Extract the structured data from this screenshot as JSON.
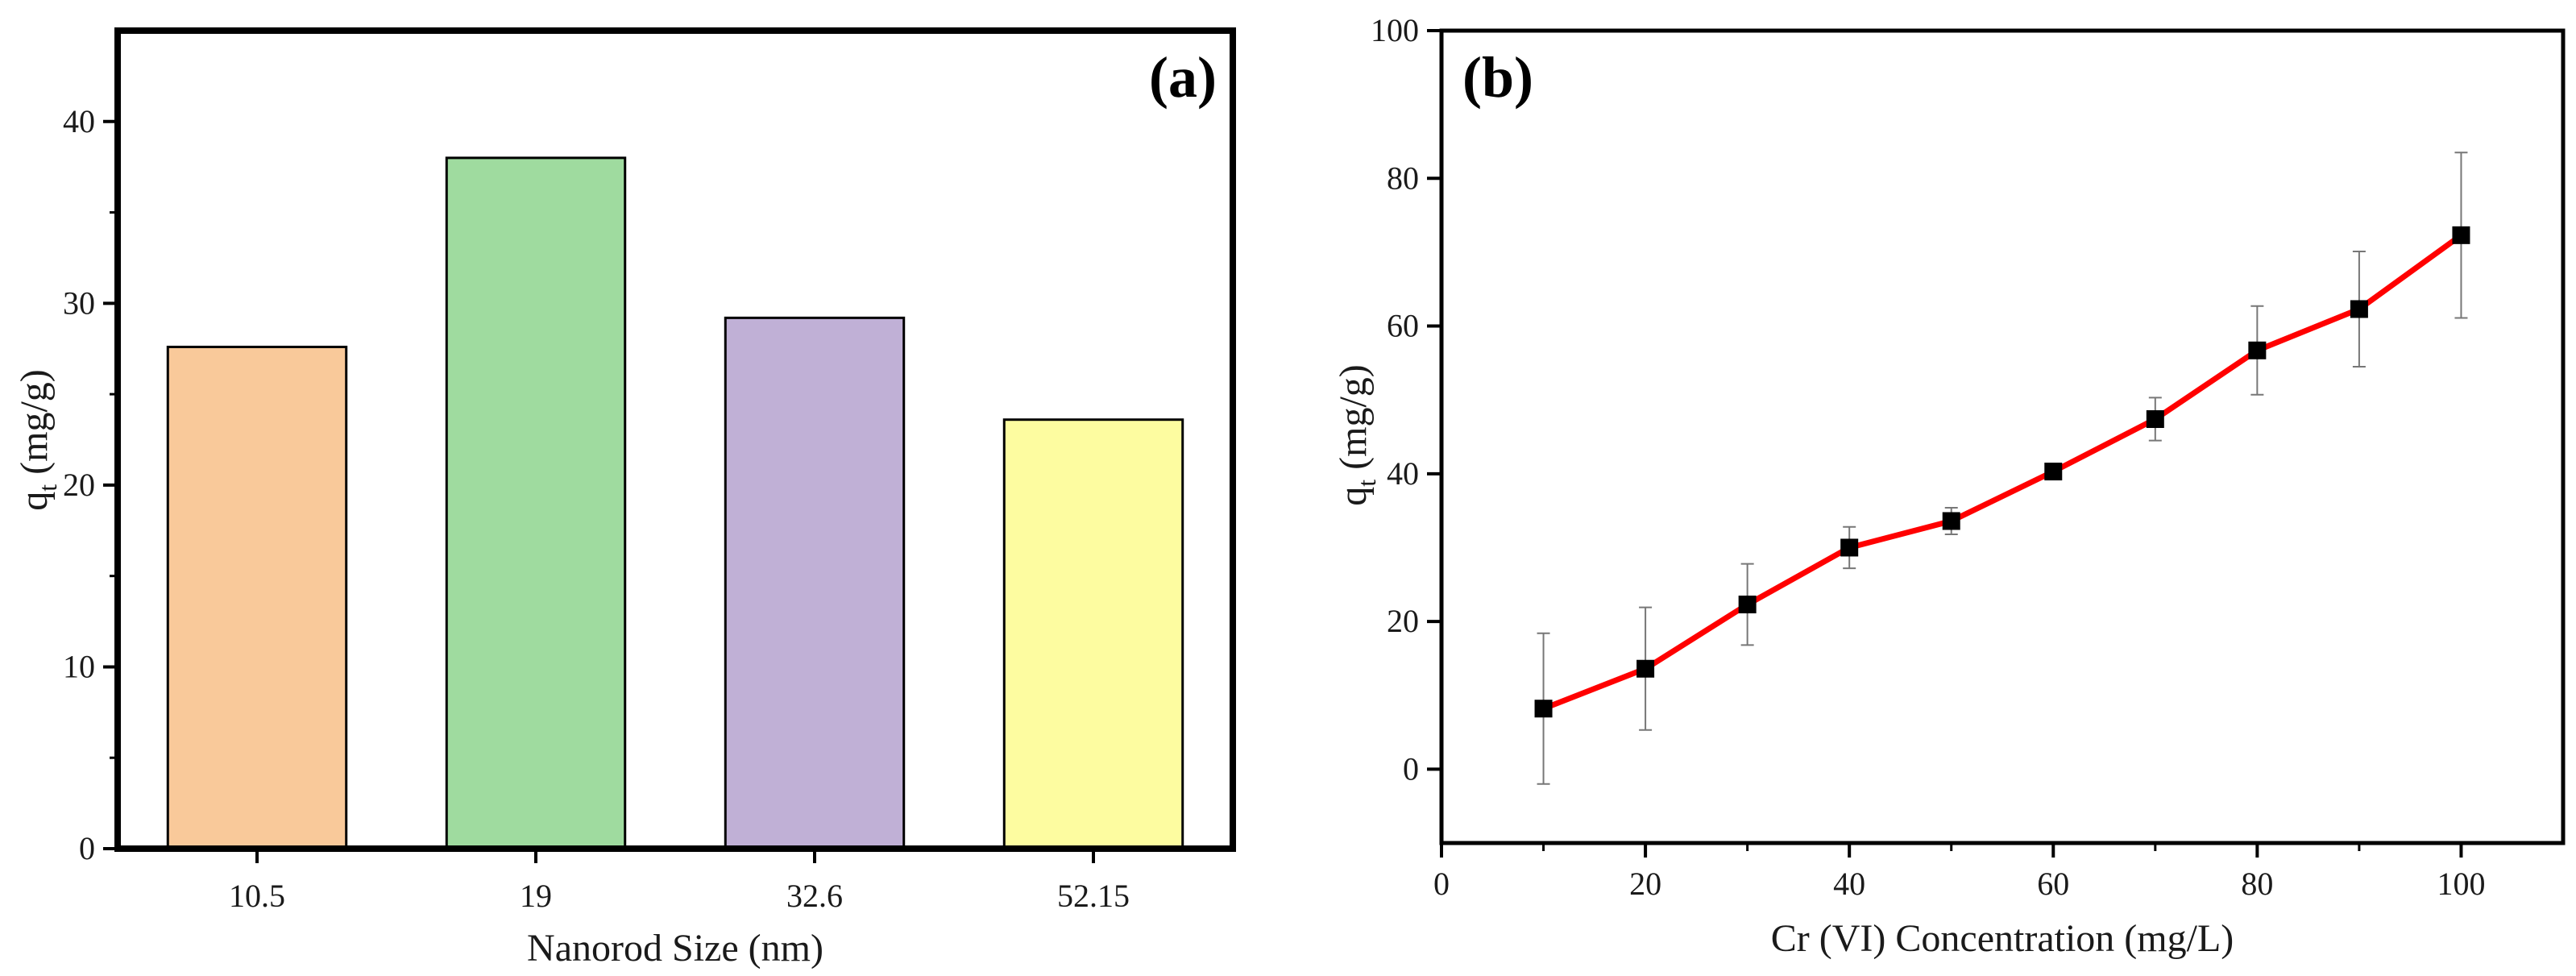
{
  "chart_data": [
    {
      "type": "bar",
      "panel_label": "(a)",
      "title": "",
      "xlabel": "Nanorod Size (nm)",
      "ylabel_main": "q",
      "ylabel_sub": "t",
      "ylabel_unit": " (mg/g)",
      "categories": [
        "10.5",
        "19",
        "32.6",
        "52.15"
      ],
      "values": [
        27.6,
        38.0,
        29.2,
        23.6
      ],
      "bar_colors": [
        "#f9c99a",
        "#9fdb9f",
        "#c0b0d6",
        "#fdfca0"
      ],
      "ylim": [
        0,
        45
      ],
      "yticks": [
        0,
        10,
        20,
        30,
        40
      ],
      "ytick_labels": [
        "0",
        "10",
        "20",
        "30",
        "40"
      ]
    },
    {
      "type": "line",
      "panel_label": "(b)",
      "title": "",
      "xlabel": "Cr (VI) Concentration (mg/L)",
      "ylabel_main": "q",
      "ylabel_sub": "t",
      "ylabel_unit": " (mg/g)",
      "x": [
        10,
        20,
        30,
        40,
        50,
        60,
        70,
        80,
        90,
        100
      ],
      "y": [
        8.2,
        13.6,
        22.3,
        30.0,
        33.6,
        40.3,
        47.4,
        56.7,
        62.3,
        72.3
      ],
      "error": [
        10.2,
        8.3,
        5.5,
        2.8,
        1.8,
        0.6,
        2.9,
        6.0,
        7.8,
        11.2
      ],
      "line_color": "#ff0000",
      "marker_color": "#000000",
      "xlim": [
        0,
        110
      ],
      "ylim": [
        -10,
        100
      ],
      "xticks": [
        0,
        20,
        40,
        60,
        80,
        100
      ],
      "xtick_labels": [
        "0",
        "20",
        "40",
        "60",
        "80",
        "100"
      ],
      "yticks": [
        0,
        20,
        40,
        60,
        80,
        100
      ],
      "ytick_labels": [
        "0",
        "20",
        "40",
        "60",
        "80",
        "100"
      ]
    }
  ]
}
